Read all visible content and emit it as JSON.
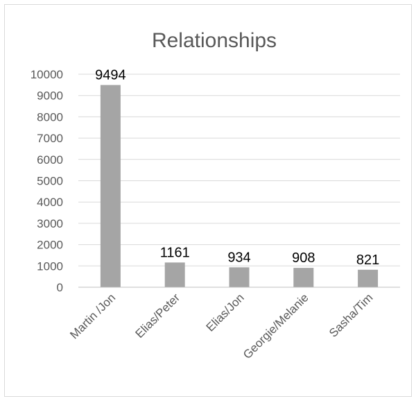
{
  "chart_data": {
    "type": "bar",
    "title": "Relationships",
    "categories": [
      "Martin /Jon",
      "Elias/Peter",
      "Elias/Jon",
      "Georgie/Melanie",
      "Sasha/Tim"
    ],
    "values": [
      9494,
      1161,
      934,
      908,
      821
    ],
    "data_labels": [
      "9494",
      "1161",
      "934",
      "908",
      "821"
    ],
    "yticks": [
      "0",
      "1000",
      "2000",
      "3000",
      "4000",
      "5000",
      "6000",
      "7000",
      "8000",
      "9000",
      "10000"
    ],
    "ylim": [
      0,
      10000
    ],
    "grid": true,
    "legend": "none",
    "bar_color": "#a5a5a5"
  }
}
